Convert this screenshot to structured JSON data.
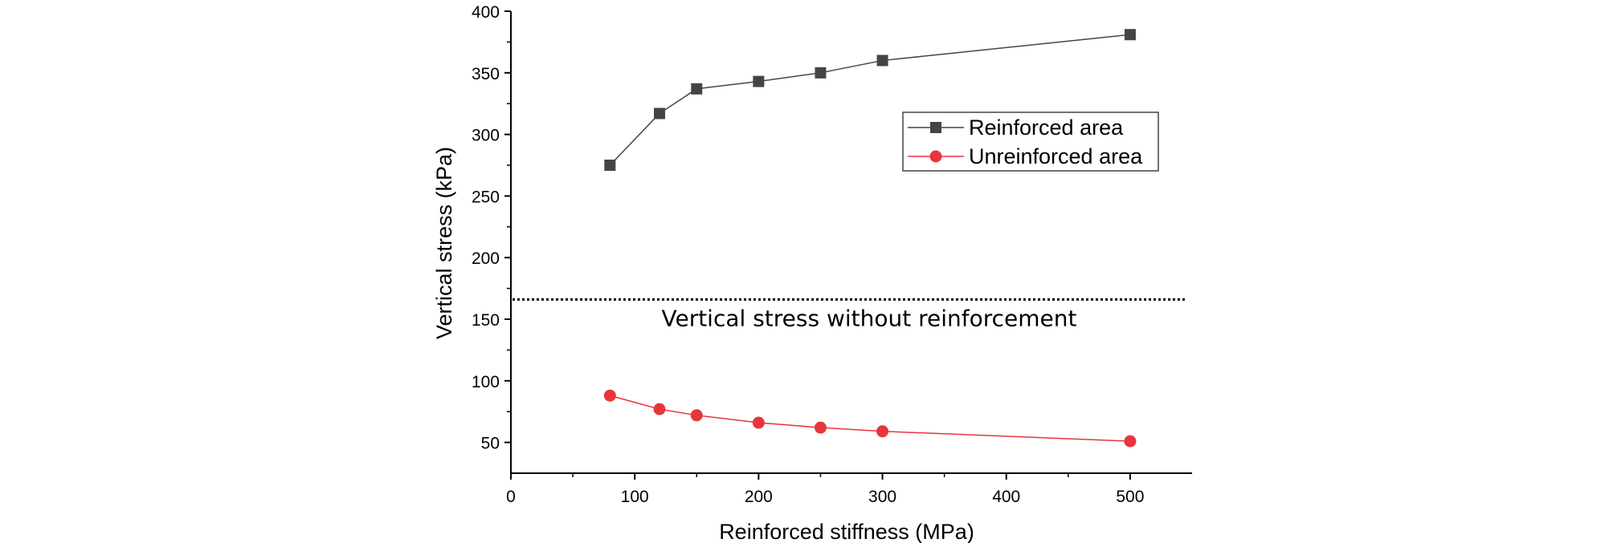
{
  "chart_data": {
    "type": "line",
    "xlabel": "Reinforced stiffness (MPa)",
    "ylabel": "Vertical stress (kPa)",
    "xlim": [
      0,
      550
    ],
    "ylim": [
      25,
      400
    ],
    "x_ticks": [
      0,
      100,
      200,
      300,
      400,
      500
    ],
    "y_ticks": [
      50,
      100,
      150,
      200,
      250,
      300,
      350,
      400
    ],
    "grid": false,
    "legend_position": "top-right",
    "series": [
      {
        "name": "Reinforced area",
        "marker": "square",
        "color": "#444444",
        "x": [
          80,
          120,
          150,
          200,
          250,
          300,
          500
        ],
        "values": [
          275,
          317,
          337,
          343,
          350,
          360,
          381
        ]
      },
      {
        "name": "Unreinforced area",
        "marker": "circle",
        "color": "#e8353b",
        "x": [
          80,
          120,
          150,
          200,
          250,
          300,
          500
        ],
        "values": [
          88,
          77,
          72,
          66,
          62,
          59,
          51
        ]
      }
    ],
    "reference_line": {
      "y": 166,
      "style": "dotted",
      "label": "Vertical stress without reinforcement"
    }
  }
}
